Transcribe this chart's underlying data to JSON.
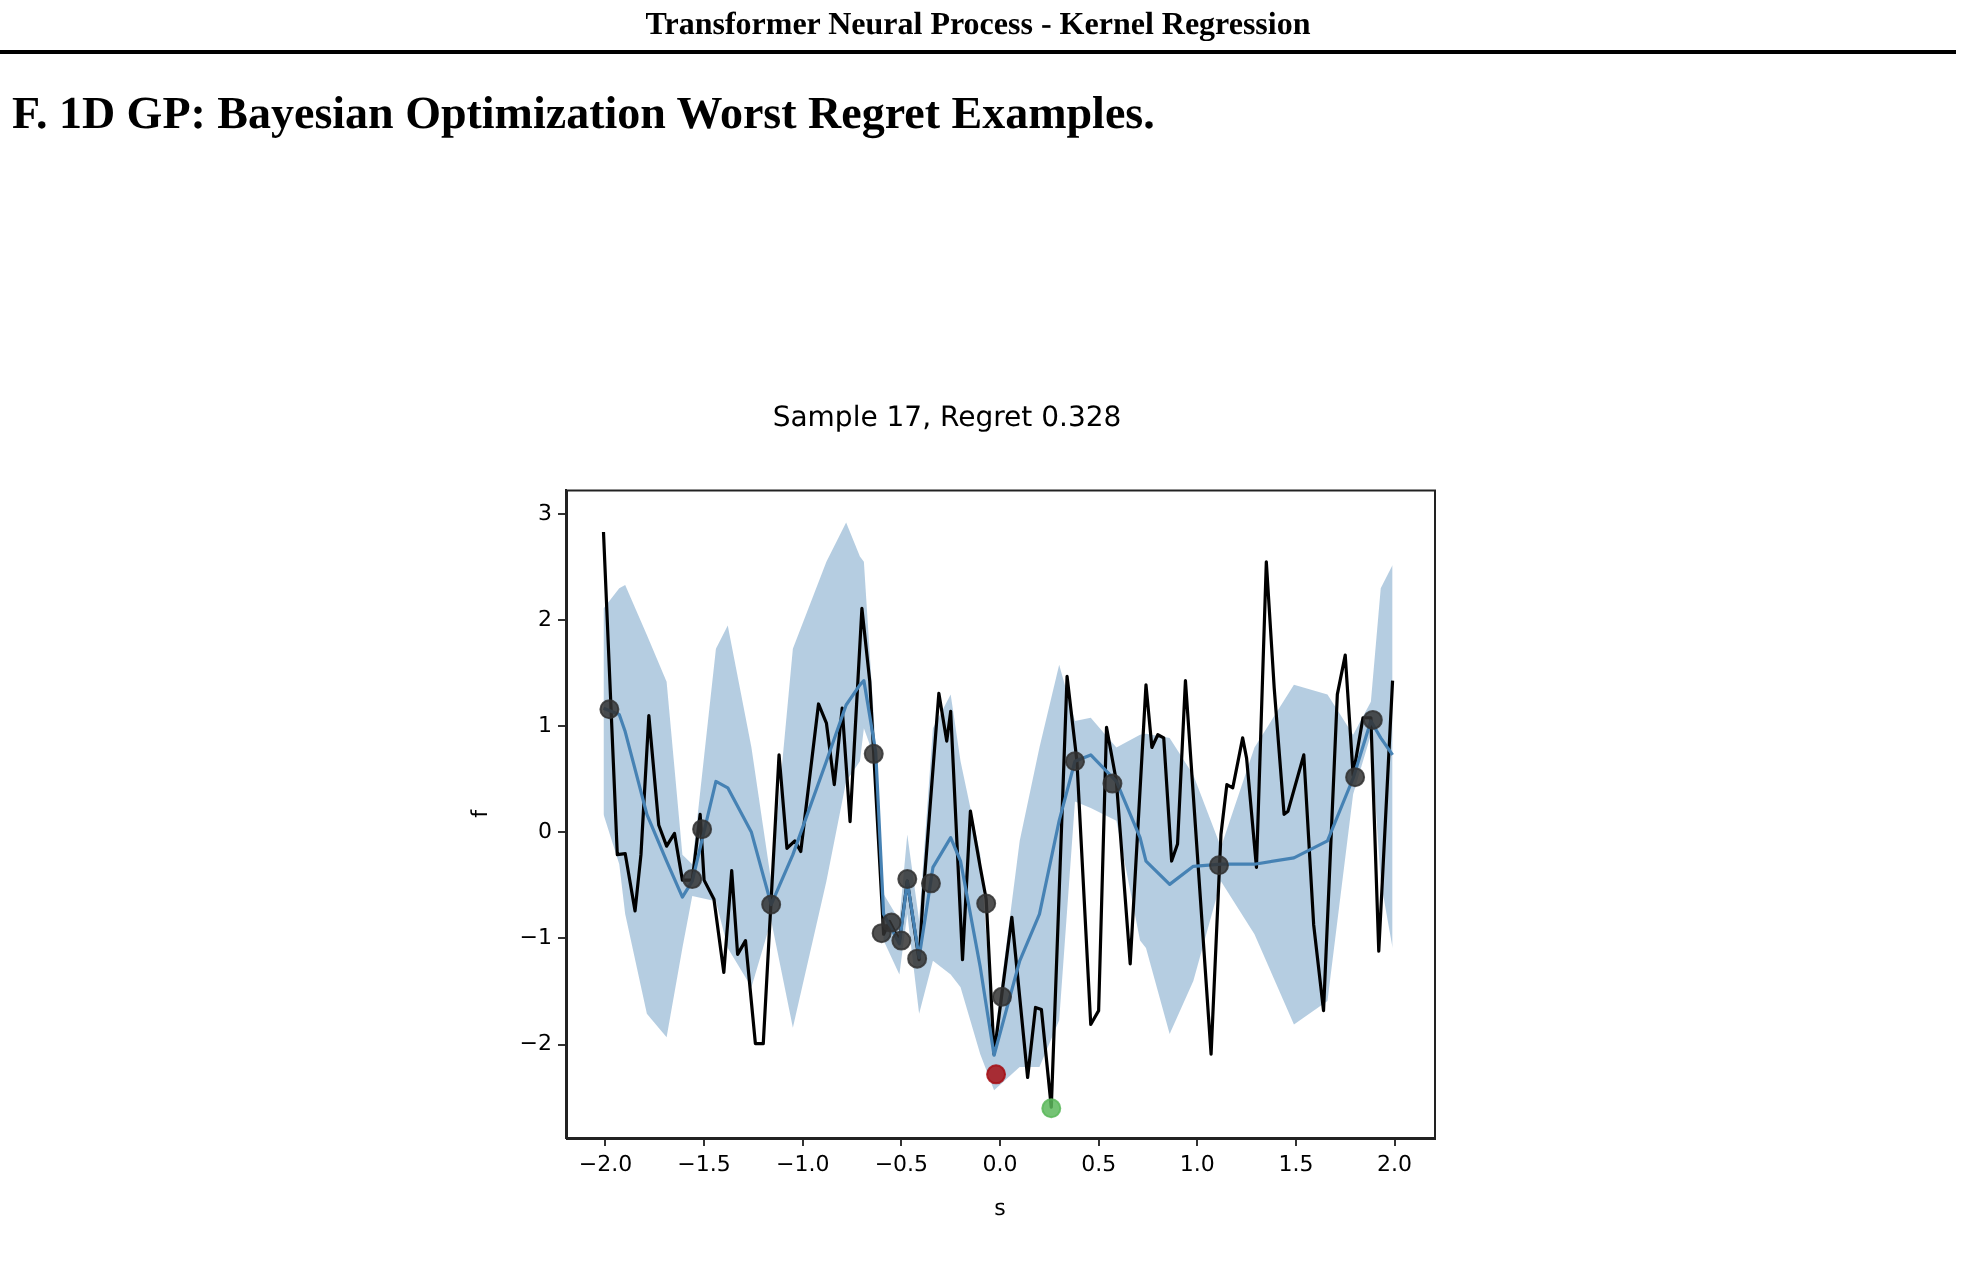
{
  "chart_data": {
    "type": "line",
    "title": "Sample 17, Regret 0.328",
    "xlabel": "s",
    "ylabel": "f",
    "annotations": [
      "Transformer Neural Process - Kernel Regression",
      "F. 1D GP: Bayesian Optimization Worst Regret Examples."
    ],
    "xlim": [
      -2.2,
      2.2
    ],
    "ylim": [
      -2.88,
      3.23
    ],
    "xticks": [
      {
        "value": -2,
        "label": "−2.0"
      },
      {
        "value": -1.5,
        "label": "−1.5"
      },
      {
        "value": -1,
        "label": "−1.0"
      },
      {
        "value": -0.5,
        "label": "−0.5"
      },
      {
        "value": 0,
        "label": "0.0"
      },
      {
        "value": 0.5,
        "label": "0.5"
      },
      {
        "value": 1,
        "label": "1.0"
      },
      {
        "value": 1.5,
        "label": "1.5"
      },
      {
        "value": 2,
        "label": "2.0"
      }
    ],
    "yticks": [
      {
        "value": -2,
        "label": "−2"
      },
      {
        "value": -1,
        "label": "−1"
      },
      {
        "value": 0,
        "label": "0"
      },
      {
        "value": 1,
        "label": "1"
      },
      {
        "value": 2,
        "label": "2"
      },
      {
        "value": 3,
        "label": "3"
      }
    ],
    "grid": false,
    "series": [
      {
        "color": "#4682b4",
        "marker": "none",
        "line_style": "solid",
        "x": [
          -2.01,
          -1.93,
          -1.9,
          -1.79,
          -1.69,
          -1.61,
          -1.56,
          -1.44,
          -1.38,
          -1.26,
          -1.16,
          -1.05,
          -0.88,
          -0.78,
          -0.71,
          -0.69,
          -0.63,
          -0.59,
          -0.51,
          -0.47,
          -0.41,
          -0.34,
          -0.25,
          -0.2,
          -0.1,
          -0.03,
          0.1,
          0.2,
          0.3,
          0.38,
          0.46,
          0.59,
          0.71,
          0.74,
          0.86,
          0.98,
          1.12,
          1.29,
          1.49,
          1.66,
          1.79,
          1.88,
          1.93,
          1.99
        ],
        "values": [
          1.17,
          1.11,
          0.95,
          0.17,
          -0.27,
          -0.61,
          -0.46,
          0.48,
          0.42,
          0.0,
          -0.68,
          -0.21,
          0.67,
          1.2,
          1.39,
          1.43,
          0.76,
          -0.77,
          -1.05,
          -0.46,
          -1.18,
          -0.33,
          -0.05,
          -0.27,
          -1.27,
          -2.1,
          -1.21,
          -0.77,
          0.11,
          0.67,
          0.73,
          0.48,
          -0.05,
          -0.27,
          -0.49,
          -0.32,
          -0.3,
          -0.3,
          -0.24,
          -0.08,
          0.51,
          1.05,
          0.89,
          0.73
        ],
        "lower": [
          0.17,
          -0.3,
          -0.77,
          -1.71,
          -1.93,
          -1.09,
          -0.6,
          -0.65,
          -1.09,
          -1.46,
          -0.83,
          -1.84,
          -0.46,
          0.48,
          0.67,
          0.98,
          0.67,
          -1.02,
          -1.34,
          -0.77,
          -1.71,
          -1.21,
          -1.34,
          -1.46,
          -2.09,
          -2.43,
          -2.21,
          -2.21,
          -1.77,
          0.29,
          0.23,
          0.11,
          -1.02,
          -1.09,
          -1.9,
          -1.4,
          -0.46,
          -0.96,
          -1.81,
          -1.59,
          0.36,
          0.92,
          -0.46,
          -1.09
        ],
        "upper": [
          2.11,
          2.3,
          2.33,
          1.86,
          1.42,
          -0.21,
          -0.3,
          1.73,
          1.95,
          0.8,
          -0.46,
          1.73,
          2.55,
          2.92,
          2.6,
          2.55,
          0.8,
          -0.58,
          -0.83,
          -0.02,
          -0.83,
          0.98,
          1.3,
          0.67,
          -0.21,
          -1.96,
          -0.08,
          0.8,
          1.58,
          1.05,
          1.08,
          0.8,
          0.92,
          0.93,
          0.89,
          0.54,
          -0.14,
          0.8,
          1.39,
          1.3,
          0.92,
          1.23,
          2.3,
          2.52
        ]
      },
      {
        "color": "#000000",
        "marker": "none",
        "line_style": "solid",
        "x": [
          -2.01,
          -1.94,
          -1.9,
          -1.85,
          -1.82,
          -1.78,
          -1.73,
          -1.69,
          -1.65,
          -1.61,
          -1.56,
          -1.52,
          -1.5,
          -1.45,
          -1.4,
          -1.36,
          -1.33,
          -1.29,
          -1.24,
          -1.2,
          -1.12,
          -1.08,
          -1.04,
          -1.01,
          -0.92,
          -0.88,
          -0.84,
          -0.8,
          -0.76,
          -0.7,
          -0.66,
          -0.59,
          -0.56,
          -0.51,
          -0.47,
          -0.41,
          -0.39,
          -0.31,
          -0.27,
          -0.25,
          -0.19,
          -0.15,
          -0.1,
          -0.07,
          -0.03,
          0.06,
          0.14,
          0.18,
          0.21,
          0.26,
          0.34,
          0.39,
          0.46,
          0.5,
          0.54,
          0.59,
          0.66,
          0.74,
          0.77,
          0.8,
          0.83,
          0.87,
          0.9,
          0.94,
          1.07,
          1.12,
          1.15,
          1.18,
          1.23,
          1.25,
          1.3,
          1.35,
          1.39,
          1.44,
          1.46,
          1.54,
          1.59,
          1.64,
          1.71,
          1.75,
          1.79,
          1.84,
          1.88,
          1.92,
          1.99
        ],
        "values": [
          2.83,
          -0.21,
          -0.2,
          -0.74,
          -0.21,
          1.1,
          0.07,
          -0.13,
          -0.01,
          -0.45,
          -0.45,
          0.17,
          -0.45,
          -0.63,
          -1.32,
          -0.36,
          -1.15,
          -1.02,
          -1.99,
          -1.99,
          0.73,
          -0.15,
          -0.08,
          -0.18,
          1.21,
          1.03,
          0.45,
          1.17,
          0.1,
          2.11,
          1.42,
          -0.96,
          -0.84,
          -1.02,
          -0.46,
          -1.2,
          -0.61,
          1.31,
          0.86,
          1.14,
          -1.2,
          0.2,
          -0.33,
          -0.63,
          -2.09,
          -0.8,
          -2.31,
          -1.65,
          -1.67,
          -2.59,
          1.47,
          0.67,
          -1.81,
          -1.68,
          0.99,
          0.48,
          -1.24,
          1.39,
          0.8,
          0.92,
          0.89,
          -0.27,
          -0.11,
          1.43,
          -2.09,
          -0.02,
          0.45,
          0.42,
          0.89,
          0.7,
          -0.33,
          2.55,
          1.36,
          0.17,
          0.2,
          0.73,
          -0.87,
          -1.68,
          1.3,
          1.67,
          0.54,
          1.08,
          1.08,
          -1.12,
          1.43
        ]
      },
      {
        "type": "scatter",
        "color": "#333333",
        "marker": "circle",
        "x": [
          -1.98,
          -1.56,
          -1.51,
          -1.16,
          -0.64,
          -0.6,
          -0.55,
          -0.5,
          -0.47,
          -0.42,
          -0.35,
          -0.07,
          0.01,
          0.38,
          0.57,
          1.11,
          1.8,
          1.89
        ],
        "values": [
          1.16,
          -0.44,
          0.03,
          -0.68,
          0.74,
          -0.95,
          -0.85,
          -1.02,
          -0.44,
          -1.19,
          -0.48,
          -0.67,
          -1.55,
          0.67,
          0.46,
          -0.31,
          0.52,
          1.06
        ]
      },
      {
        "type": "scatter",
        "color": "#a50f15",
        "marker": "circle",
        "x": [
          -0.02
        ],
        "values": [
          -2.28
        ]
      },
      {
        "type": "scatter",
        "color": "#5cb85c",
        "marker": "circle",
        "x": [
          0.26
        ],
        "values": [
          -2.6
        ]
      }
    ]
  }
}
